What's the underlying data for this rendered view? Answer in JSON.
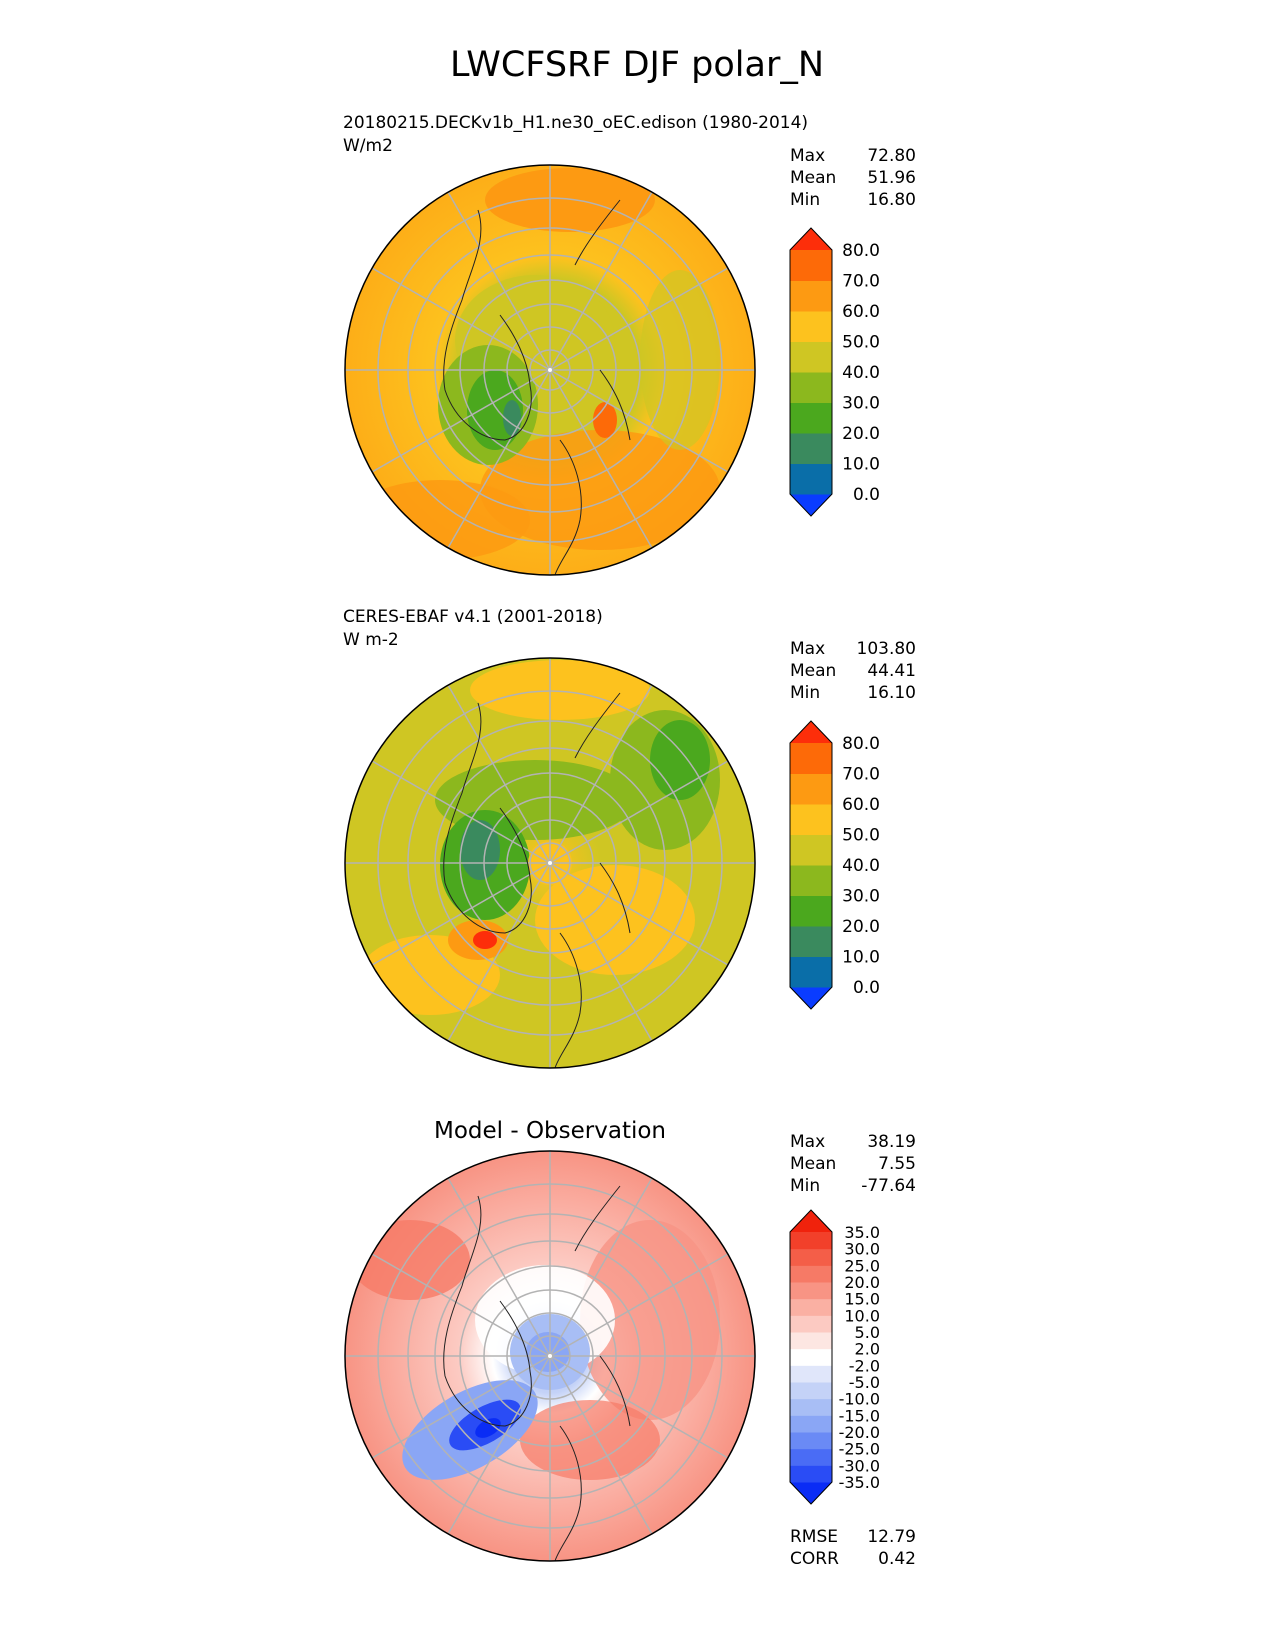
{
  "figure": {
    "title": "LWCFSRF DJF polar_N"
  },
  "chart_data": [
    {
      "type": "heatmap",
      "projection": "north-polar-stereographic",
      "title": "",
      "case_label": "20180215.DECKv1b_H1.ne30_oEC.edison (1980-2014)",
      "units": "W/m2",
      "stats": [
        {
          "label": "Max",
          "value": "72.80"
        },
        {
          "label": "Mean",
          "value": "51.96"
        },
        {
          "label": "Min",
          "value": "16.80"
        }
      ],
      "colorbar": {
        "levels": [
          "0.0",
          "10.0",
          "20.0",
          "30.0",
          "40.0",
          "50.0",
          "60.0",
          "70.0",
          "80.0"
        ],
        "colors": [
          "#0a3cff",
          "#0a6ea8",
          "#3a8a5e",
          "#4ba81e",
          "#8cb81e",
          "#cfc623",
          "#fdc21e",
          "#fd9a12",
          "#fd6a08",
          "#fd2e0a"
        ],
        "extend": "both"
      },
      "grid": true
    },
    {
      "type": "heatmap",
      "projection": "north-polar-stereographic",
      "title": "",
      "case_label": "CERES-EBAF v4.1 (2001-2018)",
      "units": "W m-2",
      "stats": [
        {
          "label": "Max",
          "value": "103.80"
        },
        {
          "label": "Mean",
          "value": "44.41"
        },
        {
          "label": "Min",
          "value": "16.10"
        }
      ],
      "colorbar": {
        "levels": [
          "0.0",
          "10.0",
          "20.0",
          "30.0",
          "40.0",
          "50.0",
          "60.0",
          "70.0",
          "80.0"
        ],
        "colors": [
          "#0a3cff",
          "#0a6ea8",
          "#3a8a5e",
          "#4ba81e",
          "#8cb81e",
          "#cfc623",
          "#fdc21e",
          "#fd9a12",
          "#fd6a08",
          "#fd2e0a"
        ],
        "extend": "both"
      },
      "grid": true
    },
    {
      "type": "heatmap",
      "projection": "north-polar-stereographic",
      "title": "Model - Observation",
      "case_label": "",
      "units": "",
      "stats": [
        {
          "label": "Max",
          "value": "38.19"
        },
        {
          "label": "Mean",
          "value": "7.55"
        },
        {
          "label": "Min",
          "value": "-77.64"
        }
      ],
      "metrics": [
        {
          "label": "RMSE",
          "value": "12.79"
        },
        {
          "label": "CORR",
          "value": "0.42"
        }
      ],
      "colorbar": {
        "levels": [
          "-35.0",
          "-30.0",
          "-25.0",
          "-20.0",
          "-15.0",
          "-10.0",
          "-5.0",
          "-2.0",
          "2.0",
          "5.0",
          "10.0",
          "15.0",
          "20.0",
          "25.0",
          "30.0",
          "35.0"
        ],
        "colors": [
          "#0a2cf5",
          "#2a4cf5",
          "#4a6cf5",
          "#6a8af5",
          "#8aa6f5",
          "#a8bef5",
          "#c4d2f7",
          "#e0e6fa",
          "#ffffff",
          "#fde6e2",
          "#fccac2",
          "#fab0a3",
          "#f89484",
          "#f67a66",
          "#f45e48",
          "#f2402a",
          "#f0220c"
        ],
        "extend": "both"
      },
      "grid": true
    }
  ]
}
